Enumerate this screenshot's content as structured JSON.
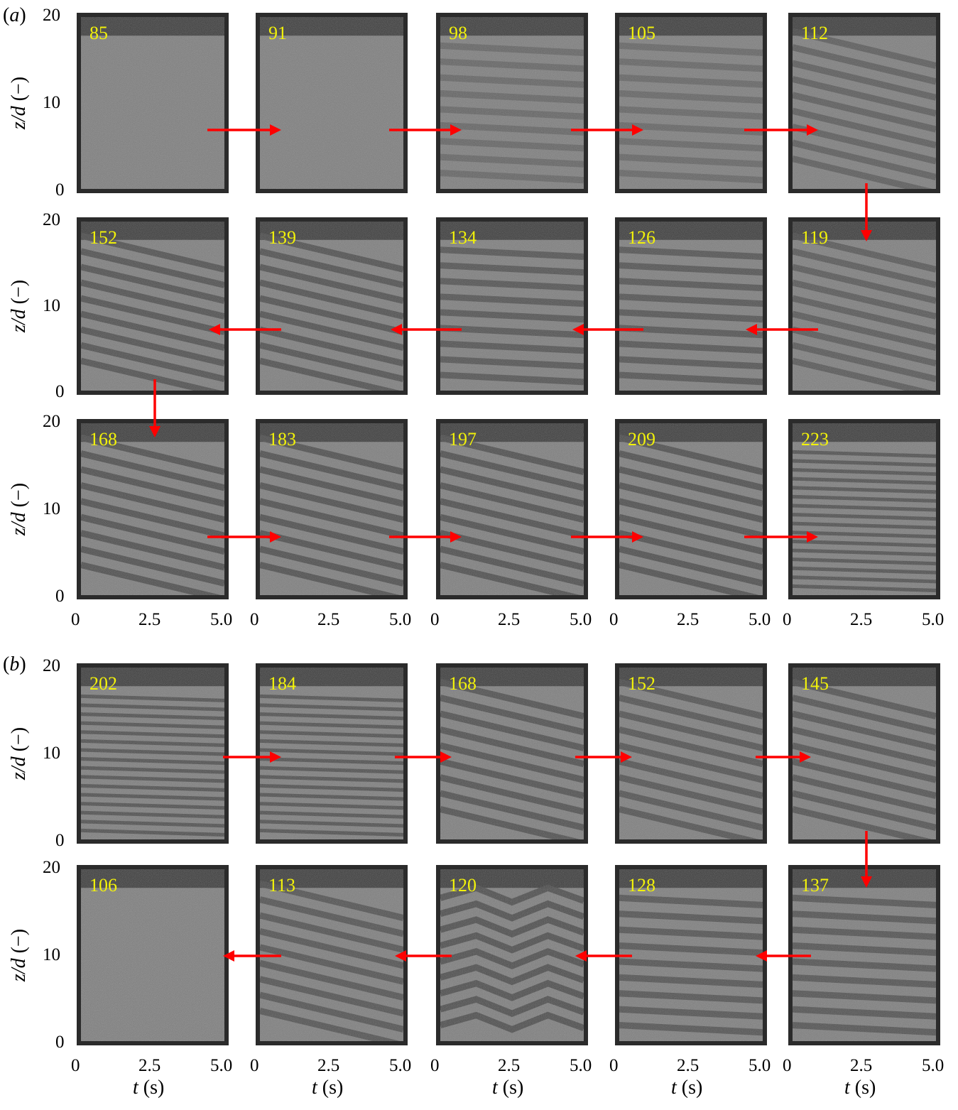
{
  "figure": {
    "part_a_label_letter": "a",
    "part_b_label_letter": "b",
    "ylabel_var": "z/d",
    "ylabel_unit": "(−)",
    "xlabel_var": "t",
    "xlabel_unit": "(s)",
    "y_ticks": [
      "20",
      "10",
      "0"
    ],
    "x_ticks": [
      "0",
      "2.5",
      "5.0"
    ],
    "arrow_color": "#ff0000",
    "frame_label_color": "#f2f20a"
  },
  "part_a": {
    "rows": [
      {
        "frames": [
          "85",
          "91",
          "98",
          "105",
          "112"
        ]
      },
      {
        "frames": [
          "152",
          "139",
          "134",
          "126",
          "119"
        ]
      },
      {
        "frames": [
          "168",
          "183",
          "197",
          "209",
          "223"
        ]
      }
    ]
  },
  "part_b": {
    "rows": [
      {
        "frames": [
          "202",
          "184",
          "168",
          "152",
          "145"
        ]
      },
      {
        "frames": [
          "106",
          "113",
          "120",
          "128",
          "137"
        ]
      }
    ]
  }
}
